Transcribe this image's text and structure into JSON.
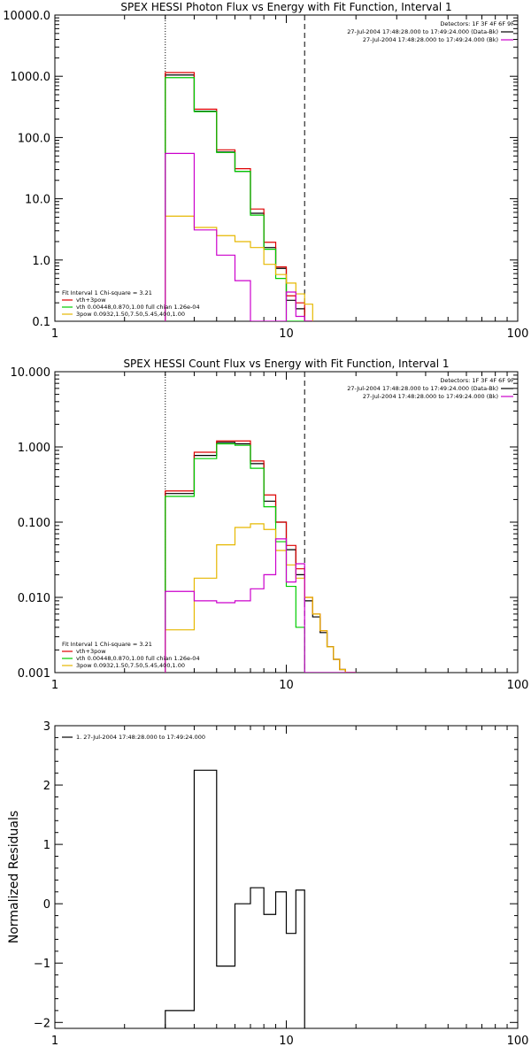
{
  "chart_data": [
    {
      "type": "line",
      "title": "SPEX HESSI Photon Flux vs Energy with Fit Function, Interval 1",
      "x_scale": "log",
      "y_scale": "log",
      "xlim": [
        1,
        100
      ],
      "ylim": [
        0.1,
        10000
      ],
      "x_ticks": [
        {
          "v": 1,
          "label": "1"
        },
        {
          "v": 10,
          "label": "10"
        },
        {
          "v": 100,
          "label": "100"
        }
      ],
      "y_ticks": [
        {
          "v": 0.1,
          "label": "0.1"
        },
        {
          "v": 1,
          "label": "1.0"
        },
        {
          "v": 10,
          "label": "10.0"
        },
        {
          "v": 100,
          "label": "100.0"
        },
        {
          "v": 1000,
          "label": "1000.0"
        },
        {
          "v": 10000,
          "label": "10000.0"
        }
      ],
      "vlines": [
        {
          "x": 3.0,
          "style": "dotted"
        },
        {
          "x": 12.0,
          "style": "dashed"
        }
      ],
      "info_box": [
        {
          "text": "Detectors: 1F 3F 4F 6F 9F",
          "color": null
        },
        {
          "text": "27-Jul-2004 17:48:28.000 to 17:49:24.000 (Data-Bk)",
          "color": "#000000"
        },
        {
          "text": "27-Jul-2004 17:48:28.000 to 17:49:24.000 (Bk)",
          "color": "#cc00cc"
        }
      ],
      "legend": {
        "header": "Fit Interval 1    Chi-square = 3.21",
        "entries": [
          {
            "label": "vth+3pow",
            "color": "#dd0000"
          },
          {
            "label": "vth 0.00448,0.870,1.00  full chian 1.26e-04",
            "color": "#00cc00"
          },
          {
            "label": "3pow 0.0932,1.50,7.50,5.45,400,1.00",
            "color": "#e6b800"
          }
        ]
      },
      "x_edges": [
        3.0,
        4.0,
        5.0,
        6.0,
        7.0,
        8.0,
        9.0,
        10.0,
        11.0,
        12.0,
        13.0
      ],
      "series": [
        {
          "color": "#000000",
          "values": [
            1050,
            270,
            58,
            28,
            5.8,
            1.6,
            0.73,
            0.22,
            0.16,
            0.1
          ]
        },
        {
          "color": "#dd0000",
          "values": [
            1150,
            290,
            63,
            31,
            6.8,
            1.95,
            0.77,
            0.26,
            0.2,
            0.1
          ]
        },
        {
          "color": "#00cc00",
          "values": [
            950,
            265,
            57,
            28,
            5.4,
            1.5,
            0.5,
            0.1,
            0.1,
            0.1
          ]
        },
        {
          "color": "#e6b800",
          "values": [
            5.2,
            3.4,
            2.5,
            2.0,
            1.6,
            0.85,
            0.58,
            0.42,
            0.28,
            0.19
          ]
        },
        {
          "color": "#cc00cc",
          "values": [
            55,
            3.1,
            1.2,
            0.46,
            0.1,
            0.1,
            0.1,
            0.3,
            0.12,
            0.1
          ]
        }
      ]
    },
    {
      "type": "line",
      "title": "SPEX HESSI Count Flux vs Energy with Fit Function, Interval 1",
      "x_scale": "log",
      "y_scale": "log",
      "xlim": [
        1,
        100
      ],
      "ylim": [
        0.001,
        10
      ],
      "x_ticks": [
        {
          "v": 1,
          "label": "1"
        },
        {
          "v": 10,
          "label": "10"
        },
        {
          "v": 100,
          "label": "100"
        }
      ],
      "y_ticks": [
        {
          "v": 0.001,
          "label": "0.001"
        },
        {
          "v": 0.01,
          "label": "0.010"
        },
        {
          "v": 0.1,
          "label": "0.100"
        },
        {
          "v": 1,
          "label": "1.000"
        },
        {
          "v": 10,
          "label": "10.000"
        }
      ],
      "vlines": [
        {
          "x": 3.0,
          "style": "dotted"
        },
        {
          "x": 12.0,
          "style": "dashed"
        }
      ],
      "info_box": [
        {
          "text": "Detectors: 1F 3F 4F 6F 9F",
          "color": null
        },
        {
          "text": "27-Jul-2004 17:48:28.000 to 17:49:24.000 (Data-Bk)",
          "color": "#000000"
        },
        {
          "text": "27-Jul-2004 17:48:28.000 to 17:49:24.000 (Bk)",
          "color": "#cc00cc"
        }
      ],
      "legend": {
        "header": "Fit Interval 1    Chi-square = 3.21",
        "entries": [
          {
            "label": "vth+3pow",
            "color": "#dd0000"
          },
          {
            "label": "vth 0.00448,0.870,1.00  full chian 1.26e-04",
            "color": "#00cc00"
          },
          {
            "label": "3pow 0.0932,1.50,7.50,5.45,400,1.00",
            "color": "#e6b800"
          }
        ]
      },
      "x_edges": [
        3.0,
        4.0,
        5.0,
        6.0,
        7.0,
        8.0,
        9.0,
        10.0,
        11.0,
        12.0,
        13.0,
        14.0,
        15.0,
        16.0,
        17.0,
        18.0,
        19.0,
        20.0
      ],
      "series": [
        {
          "color": "#000000",
          "values": [
            0.24,
            0.77,
            1.15,
            1.1,
            0.6,
            0.19,
            0.1,
            0.043,
            0.02,
            0.009,
            0.0055,
            0.0034,
            0.0022,
            0.0015,
            0.0011,
            0.001,
            0.001
          ]
        },
        {
          "color": "#dd0000",
          "values": [
            0.26,
            0.85,
            1.2,
            1.2,
            0.65,
            0.23,
            0.1,
            0.049,
            0.024,
            0.01,
            0.006,
            0.0036,
            0.0022,
            0.0015,
            0.0011,
            0.001,
            0.001
          ]
        },
        {
          "color": "#00cc00",
          "values": [
            0.22,
            0.7,
            1.1,
            1.05,
            0.52,
            0.16,
            0.055,
            0.014,
            0.004,
            0.001,
            0.001,
            0.001,
            0.001,
            0.001,
            0.001,
            0.001,
            0.001
          ]
        },
        {
          "color": "#e6b800",
          "values": [
            0.0037,
            0.018,
            0.05,
            0.085,
            0.095,
            0.08,
            0.042,
            0.027,
            0.018,
            0.01,
            0.006,
            0.0036,
            0.0022,
            0.0015,
            0.0011,
            0.001,
            0.001
          ]
        },
        {
          "color": "#cc00cc",
          "values": [
            0.012,
            0.009,
            0.0085,
            0.009,
            0.013,
            0.02,
            0.06,
            0.016,
            0.028,
            0.001,
            0.001,
            0.001,
            0.001,
            0.001,
            0.001,
            0.001,
            0.001
          ]
        }
      ]
    },
    {
      "type": "line",
      "title": "",
      "x_scale": "log",
      "y_scale": "linear",
      "xlim": [
        1,
        100
      ],
      "ylim": [
        -2.1,
        3
      ],
      "ylabel": "Normalized Residuals",
      "x_ticks": [
        {
          "v": 1,
          "label": "1"
        },
        {
          "v": 10,
          "label": "10"
        },
        {
          "v": 100,
          "label": "100"
        }
      ],
      "y_ticks": [
        {
          "v": -2,
          "label": "−2"
        },
        {
          "v": -1,
          "label": "−1"
        },
        {
          "v": 0,
          "label": "0"
        },
        {
          "v": 1,
          "label": "1"
        },
        {
          "v": 2,
          "label": "2"
        },
        {
          "v": 3,
          "label": "3"
        }
      ],
      "vlines": [],
      "legend": {
        "header": "",
        "entries": [
          {
            "label": "1. 27-Jul-2004 17:48:28.000 to 17:49:24.000",
            "color": "#000000"
          }
        ]
      },
      "x_edges": [
        3.0,
        4.0,
        5.0,
        6.0,
        7.0,
        8.0,
        9.0,
        10.0,
        11.0,
        12.0
      ],
      "series": [
        {
          "color": "#000000",
          "values": [
            -1.8,
            2.25,
            -1.05,
            0.0,
            0.27,
            -0.18,
            0.2,
            -0.5,
            0.23
          ]
        }
      ]
    }
  ]
}
